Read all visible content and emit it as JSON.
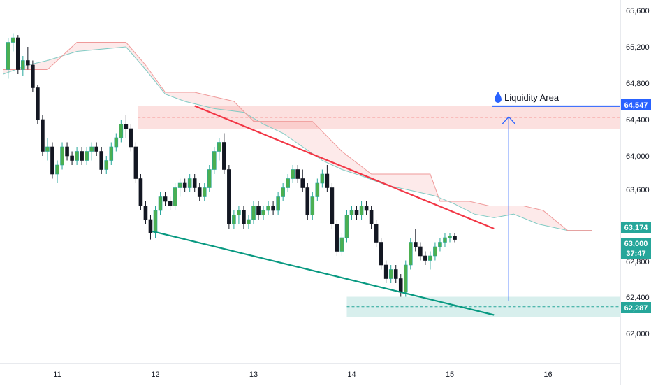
{
  "chart_data": {
    "type": "candlestick",
    "title": "",
    "xlabel": "",
    "ylabel": "",
    "ylim": [
      61800,
      65700
    ],
    "x_ticks": [
      "11",
      "12",
      "13",
      "14",
      "15",
      "16"
    ],
    "y_ticks": [
      "65,600",
      "65,200",
      "64,800",
      "64,400",
      "64,000",
      "63,600",
      "63,000",
      "62,800",
      "62,400",
      "62,000"
    ],
    "y_tick_values": [
      65600,
      65200,
      64800,
      64400,
      64000,
      63600,
      63000,
      62800,
      62400,
      62000
    ],
    "annotation": {
      "label": "Liquidity Area",
      "icon": "droplet-icon",
      "level": 64547
    },
    "price_labels": [
      {
        "text": "64,547",
        "value": 64547,
        "color": "#2962ff"
      },
      {
        "text": "63,174",
        "value": 63174,
        "color": "#26a69a"
      },
      {
        "text": "63,000",
        "value": 63000,
        "color": "#26a69a"
      },
      {
        "text": "37:47",
        "value": 62890,
        "color": "#26a69a"
      },
      {
        "text": "62,287",
        "value": 62287,
        "color": "#26a69a"
      }
    ],
    "zones": [
      {
        "name": "resistance-zone",
        "x_from": 11.82,
        "x_to": 16.75,
        "y_from": 64300,
        "y_to": 64550,
        "color": "#ef5350"
      },
      {
        "name": "support-zone",
        "x_from": 13.95,
        "x_to": 16.75,
        "y_from": 62230,
        "y_to": 62450,
        "color": "#26a69a"
      }
    ],
    "trend_lines": [
      {
        "name": "descending-resistance",
        "from": [
          12.4,
          64550
        ],
        "to": [
          15.45,
          63200
        ],
        "color": "#f23645"
      },
      {
        "name": "descending-support",
        "from": [
          11.97,
          63170
        ],
        "to": [
          15.45,
          62250
        ],
        "color": "#089981"
      }
    ],
    "target_arrow": {
      "x": 15.6,
      "from": 62400,
      "to": 64430,
      "color": "#2962ff"
    },
    "ichimoku": {
      "span_a": [
        [
          10.45,
          64900
        ],
        [
          10.7,
          65000
        ],
        [
          10.9,
          65050
        ],
        [
          11.2,
          65150
        ],
        [
          11.7,
          65200
        ],
        [
          11.9,
          64950
        ],
        [
          12.1,
          64680
        ],
        [
          12.3,
          64600
        ],
        [
          12.6,
          64520
        ],
        [
          12.9,
          64480
        ],
        [
          13.1,
          64350
        ],
        [
          13.3,
          64250
        ],
        [
          13.5,
          64100
        ],
        [
          13.7,
          63950
        ],
        [
          13.9,
          63850
        ],
        [
          14.1,
          63780
        ],
        [
          14.35,
          63680
        ],
        [
          14.6,
          63620
        ],
        [
          14.85,
          63560
        ],
        [
          15.05,
          63470
        ],
        [
          15.25,
          63360
        ],
        [
          15.45,
          63320
        ],
        [
          15.65,
          63360
        ],
        [
          15.9,
          63250
        ],
        [
          16.2,
          63180
        ],
        [
          16.45,
          63180
        ]
      ],
      "span_b": [
        [
          10.45,
          64950
        ],
        [
          10.7,
          64950
        ],
        [
          10.9,
          64950
        ],
        [
          11.2,
          65250
        ],
        [
          11.7,
          65250
        ],
        [
          11.9,
          65000
        ],
        [
          12.1,
          64700
        ],
        [
          12.4,
          64700
        ],
        [
          12.8,
          64600
        ],
        [
          13.0,
          64380
        ],
        [
          13.3,
          64380
        ],
        [
          13.6,
          64380
        ],
        [
          13.9,
          64050
        ],
        [
          14.2,
          63800
        ],
        [
          14.5,
          63800
        ],
        [
          14.8,
          63800
        ],
        [
          14.9,
          63500
        ],
        [
          15.2,
          63500
        ],
        [
          15.4,
          63450
        ],
        [
          15.6,
          63450
        ],
        [
          15.75,
          63450
        ],
        [
          15.95,
          63400
        ],
        [
          16.2,
          63180
        ],
        [
          16.45,
          63180
        ]
      ]
    },
    "candles": [
      [
        10.5,
        64950,
        65300,
        64850,
        65250
      ],
      [
        10.55,
        65250,
        65350,
        65150,
        65300
      ],
      [
        10.6,
        65300,
        65330,
        64900,
        64950
      ],
      [
        10.65,
        64950,
        65100,
        64880,
        65050
      ],
      [
        10.7,
        65050,
        65200,
        64950,
        65000
      ],
      [
        10.75,
        65000,
        65050,
        64700,
        64750
      ],
      [
        10.8,
        64750,
        64780,
        64350,
        64400
      ],
      [
        10.85,
        64400,
        64450,
        64000,
        64050
      ],
      [
        10.9,
        64050,
        64200,
        63950,
        64100
      ],
      [
        10.95,
        64100,
        64150,
        63750,
        63800
      ],
      [
        11.0,
        63800,
        63950,
        63700,
        63900
      ],
      [
        11.05,
        63900,
        64150,
        63850,
        64100
      ],
      [
        11.1,
        64100,
        64150,
        63950,
        64000
      ],
      [
        11.15,
        64000,
        64050,
        63900,
        63950
      ],
      [
        11.2,
        63950,
        64100,
        63900,
        64050
      ],
      [
        11.25,
        64050,
        64100,
        63900,
        63950
      ],
      [
        11.3,
        63950,
        64100,
        63900,
        64050
      ],
      [
        11.35,
        64050,
        64150,
        63950,
        64100
      ],
      [
        11.4,
        64100,
        64150,
        64000,
        64050
      ],
      [
        11.45,
        64050,
        64100,
        63800,
        63850
      ],
      [
        11.5,
        63850,
        64000,
        63800,
        63950
      ],
      [
        11.55,
        63950,
        64150,
        63900,
        64100
      ],
      [
        11.6,
        64100,
        64250,
        64050,
        64200
      ],
      [
        11.65,
        64200,
        64400,
        64150,
        64350
      ],
      [
        11.7,
        64350,
        64450,
        64200,
        64300
      ],
      [
        11.75,
        64300,
        64350,
        64050,
        64100
      ],
      [
        11.8,
        64100,
        64150,
        63700,
        63750
      ],
      [
        11.85,
        63750,
        63800,
        63400,
        63450
      ],
      [
        11.9,
        63450,
        63500,
        63250,
        63300
      ],
      [
        11.95,
        63300,
        63350,
        63080,
        63150
      ],
      [
        12.0,
        63150,
        63450,
        63100,
        63400
      ],
      [
        12.05,
        63400,
        63600,
        63350,
        63550
      ],
      [
        12.1,
        63550,
        63600,
        63450,
        63500
      ],
      [
        12.15,
        63500,
        63550,
        63400,
        63450
      ],
      [
        12.2,
        63450,
        63700,
        63400,
        63650
      ],
      [
        12.25,
        63650,
        63750,
        63550,
        63700
      ],
      [
        12.3,
        63700,
        63750,
        63600,
        63650
      ],
      [
        12.35,
        63650,
        63800,
        63600,
        63750
      ],
      [
        12.4,
        63750,
        63800,
        63600,
        63650
      ],
      [
        12.45,
        63650,
        63700,
        63500,
        63550
      ],
      [
        12.5,
        63550,
        63700,
        63500,
        63650
      ],
      [
        12.55,
        63650,
        63900,
        63600,
        63850
      ],
      [
        12.6,
        63850,
        64100,
        63800,
        64050
      ],
      [
        12.65,
        64050,
        64200,
        63950,
        64150
      ],
      [
        12.7,
        64150,
        64250,
        63800,
        63850
      ],
      [
        12.75,
        63850,
        63900,
        63200,
        63250
      ],
      [
        12.8,
        63250,
        63400,
        63200,
        63350
      ],
      [
        12.85,
        63350,
        63450,
        63250,
        63400
      ],
      [
        12.9,
        63400,
        63450,
        63200,
        63250
      ],
      [
        12.95,
        63250,
        63350,
        63200,
        63300
      ],
      [
        13.0,
        63300,
        63500,
        63250,
        63450
      ],
      [
        13.05,
        63450,
        63500,
        63300,
        63350
      ],
      [
        13.1,
        63350,
        63450,
        63300,
        63400
      ],
      [
        13.15,
        63400,
        63500,
        63350,
        63450
      ],
      [
        13.2,
        63450,
        63500,
        63350,
        63400
      ],
      [
        13.25,
        63400,
        63600,
        63350,
        63550
      ],
      [
        13.3,
        63550,
        63700,
        63500,
        63650
      ],
      [
        13.35,
        63650,
        63800,
        63600,
        63750
      ],
      [
        13.4,
        63750,
        63900,
        63700,
        63850
      ],
      [
        13.45,
        63850,
        63900,
        63700,
        63750
      ],
      [
        13.5,
        63750,
        63850,
        63600,
        63650
      ],
      [
        13.55,
        63650,
        63700,
        63300,
        63350
      ],
      [
        13.6,
        63350,
        63600,
        63300,
        63550
      ],
      [
        13.65,
        63550,
        63750,
        63500,
        63700
      ],
      [
        13.7,
        63700,
        63850,
        63650,
        63800
      ],
      [
        13.75,
        63800,
        63900,
        63600,
        63650
      ],
      [
        13.8,
        63650,
        63700,
        63200,
        63250
      ],
      [
        13.85,
        63250,
        63300,
        62900,
        62950
      ],
      [
        13.9,
        62950,
        63150,
        62900,
        63100
      ],
      [
        13.95,
        63100,
        63400,
        63050,
        63350
      ],
      [
        14.0,
        63350,
        63450,
        63300,
        63400
      ],
      [
        14.05,
        63400,
        63450,
        63300,
        63350
      ],
      [
        14.1,
        63350,
        63500,
        63300,
        63450
      ],
      [
        14.15,
        63450,
        63500,
        63350,
        63400
      ],
      [
        14.2,
        63400,
        63450,
        63200,
        63250
      ],
      [
        14.25,
        63250,
        63300,
        63000,
        63050
      ],
      [
        14.3,
        63050,
        63100,
        62750,
        62800
      ],
      [
        14.35,
        62800,
        62850,
        62600,
        62650
      ],
      [
        14.4,
        62650,
        62800,
        62600,
        62750
      ],
      [
        14.45,
        62750,
        62800,
        62600,
        62650
      ],
      [
        14.5,
        62650,
        62700,
        62450,
        62500
      ],
      [
        14.55,
        62500,
        62850,
        62450,
        62800
      ],
      [
        14.6,
        62800,
        63100,
        62750,
        63050
      ],
      [
        14.65,
        63050,
        63200,
        62950,
        63000
      ],
      [
        14.7,
        63000,
        63050,
        62850,
        62900
      ],
      [
        14.75,
        62900,
        62950,
        62800,
        62850
      ],
      [
        14.8,
        62850,
        62950,
        62750,
        62900
      ],
      [
        14.85,
        62900,
        63050,
        62850,
        63000
      ],
      [
        14.9,
        63000,
        63100,
        62950,
        63050
      ],
      [
        14.95,
        63050,
        63150,
        63000,
        63100
      ],
      [
        15.0,
        63100,
        63150,
        63050,
        63120
      ],
      [
        15.05,
        63120,
        63150,
        63050,
        63080
      ]
    ]
  }
}
